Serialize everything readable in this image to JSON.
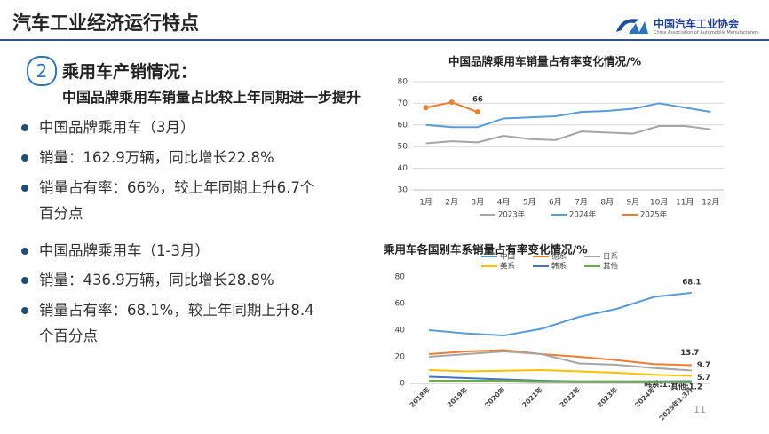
{
  "header": {
    "title": "汽车工业经济运行特点",
    "org": "中国汽车工业协会",
    "org_en": "China Association of Automobile Manufacturers"
  },
  "section": {
    "number": "2",
    "title": "乘用车产销情况：",
    "subtitle": "中国品牌乘用车销量占比较上年同期进一步提升"
  },
  "bullets": [
    "中国品牌乘用车（3月）",
    "销量：162.9万辆，同比增长22.8%",
    "销量占有率：66%，较上年同期上升6.7个百分点",
    "中国品牌乘用车（1-3月）",
    "销量：436.9万辆，同比增长28.8%",
    "销量占有率：68.1%，较上年同期上升8.4个百分点"
  ],
  "page_number": "11",
  "chart_data": [
    {
      "type": "line",
      "title": "中国品牌乘用车销量占有率变化情况/%",
      "categories": [
        "1月",
        "2月",
        "3月",
        "4月",
        "5月",
        "6月",
        "7月",
        "8月",
        "9月",
        "10月",
        "11月",
        "12月"
      ],
      "series": [
        {
          "name": "2023年",
          "color": "#a5a5a5",
          "values": [
            51.5,
            52.5,
            52,
            55,
            53.5,
            53,
            57,
            56.5,
            56,
            59.5,
            59.5,
            58
          ]
        },
        {
          "name": "2024年",
          "color": "#5b9bd5",
          "values": [
            60,
            59,
            59,
            63,
            63.5,
            64,
            66,
            66.5,
            67.5,
            70,
            68,
            66
          ]
        },
        {
          "name": "2025年",
          "color": "#ed7d31",
          "markers": true,
          "data_labels": "last",
          "values": [
            68,
            70.5,
            66,
            null,
            null,
            null,
            null,
            null,
            null,
            null,
            null,
            null
          ]
        }
      ],
      "ylim": [
        30,
        80
      ],
      "yticks": [
        30,
        40,
        50,
        60,
        70,
        80
      ],
      "grid": true,
      "legend": "bottom"
    },
    {
      "type": "line",
      "title": "乘用车各国别车系销量占有率变化情况/%",
      "categories": [
        "2018年",
        "2019年",
        "2020年",
        "2021年",
        "2022年",
        "2023年",
        "2024年",
        "2025年1-3月"
      ],
      "series": [
        {
          "name": "中国",
          "color": "#5b9bd5",
          "data_labels": "last",
          "values": [
            40,
            37.5,
            36,
            41,
            50,
            56,
            65,
            68.1
          ]
        },
        {
          "name": "德系",
          "color": "#ed7d31",
          "data_labels": "last",
          "values": [
            22,
            24,
            25,
            22,
            20,
            17.5,
            14.5,
            13.7
          ]
        },
        {
          "name": "日系",
          "color": "#a5a5a5",
          "data_labels": "last",
          "values": [
            20,
            22,
            24,
            22,
            15,
            14,
            11.5,
            9.7
          ]
        },
        {
          "name": "美系",
          "color": "#ffc000",
          "data_labels": "last",
          "values": [
            10,
            9,
            9.5,
            10,
            9,
            8,
            6.5,
            5.7
          ]
        },
        {
          "name": "韩系",
          "color": "#4472c4",
          "data_labels": "last",
          "values": [
            5,
            4,
            3,
            2,
            1.5,
            1.5,
            1.5,
            1.7
          ],
          "value_labels": [
            null,
            null,
            null,
            null,
            null,
            null,
            null,
            "韩系:1.7"
          ]
        },
        {
          "name": "其他",
          "color": "#70ad47",
          "data_labels": "last",
          "values": [
            2,
            2,
            2,
            1.5,
            1.5,
            1.5,
            1.2,
            1.2
          ],
          "value_labels": [
            null,
            null,
            null,
            null,
            null,
            null,
            null,
            "其他:1.2"
          ]
        }
      ],
      "ylim": [
        0,
        80
      ],
      "yticks": [
        0,
        20,
        40,
        60,
        80
      ],
      "grid": false,
      "legend": "top"
    }
  ]
}
